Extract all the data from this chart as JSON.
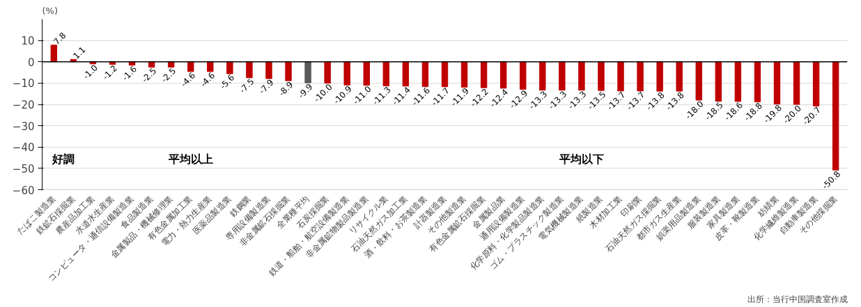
{
  "chart_data": {
    "type": "bar",
    "ylabel": "(%)",
    "categories": [
      "たばこ製造業",
      "鉄鉱石採掘業",
      "農産品加工業",
      "水道水生産業",
      "コンピュータ・通信設備製造業",
      "食品製造業",
      "金属製品・機械修理業",
      "有色金属加工業",
      "電力・熱力生産業",
      "医薬品製造業",
      "鉄鋼業",
      "専用設備製造業",
      "非金属鉱石採掘業",
      "全業種平均",
      "石炭採掘業",
      "鉄道・船舶・航空設備製造業",
      "非金属鉱物製品製造業",
      "リサイクル業",
      "石油天然ガス加工業",
      "酒・飲料・お茶製造業",
      "計器製造業",
      "その他製造業",
      "有色金属鉱石採掘業",
      "金属製品業",
      "通用設備製造業",
      "化学原料・化学製品製造業",
      "ゴム・プラスチック製造業",
      "電気機械製造業",
      "紙製造業",
      "木材加工業",
      "印刷業",
      "石油天然ガス採掘業",
      "都市ガス生産業",
      "娯楽用品製造業",
      "服装製造業",
      "家具製造業",
      "皮革・靴製造業",
      "紡績業",
      "化学繊維製造業",
      "自動車製造業",
      "その他採掘業"
    ],
    "values": [
      7.8,
      1.1,
      -1.0,
      -1.2,
      -1.6,
      -2.5,
      -2.5,
      -4.6,
      -4.6,
      -5.6,
      -7.5,
      -7.9,
      -8.9,
      -9.9,
      -10.0,
      -10.9,
      -11.0,
      -11.3,
      -11.4,
      -11.6,
      -11.7,
      -11.9,
      -12.2,
      -12.4,
      -12.9,
      -13.3,
      -13.3,
      -13.3,
      -13.5,
      -13.7,
      -13.7,
      -13.8,
      -13.8,
      -18.0,
      -18.5,
      -18.6,
      -18.8,
      -19.8,
      -20.0,
      -20.7,
      -50.8
    ],
    "colors": [
      "#c00000",
      "#c00000",
      "#c00000",
      "#c00000",
      "#c00000",
      "#c00000",
      "#c00000",
      "#c00000",
      "#c00000",
      "#c00000",
      "#c00000",
      "#c00000",
      "#c00000",
      "#595959",
      "#c00000",
      "#c00000",
      "#c00000",
      "#c00000",
      "#c00000",
      "#c00000",
      "#c00000",
      "#c00000",
      "#c00000",
      "#c00000",
      "#c00000",
      "#c00000",
      "#c00000",
      "#c00000",
      "#c00000",
      "#c00000",
      "#c00000",
      "#c00000",
      "#c00000",
      "#c00000",
      "#c00000",
      "#c00000",
      "#c00000",
      "#c00000",
      "#c00000",
      "#c00000",
      "#c00000"
    ],
    "ylim": [
      -60,
      20
    ],
    "yticks": [
      -60,
      -50,
      -40,
      -30,
      -20,
      -10,
      0,
      10
    ],
    "grid": "y",
    "value_labels": [
      "7.8",
      "1.1",
      "-1.0",
      "-1.2",
      "-1.6",
      "-2.5",
      "-2.5",
      "-4.6",
      "-4.6",
      "-5.6",
      "-7.5",
      "-7.9",
      "-8.9",
      "-9.9",
      "-10.0",
      "-10.9",
      "-11.0",
      "-11.3",
      "-11.4",
      "-11.6",
      "-11.7",
      "-11.9",
      "-12.2",
      "-12.4",
      "-12.9",
      "-13.3",
      "-13.3",
      "-13.3",
      "-13.5",
      "-13.7",
      "-13.7",
      "-13.8",
      "-13.8",
      "-18.0",
      "-18.5",
      "-18.6",
      "-18.8",
      "-19.8",
      "-20.0",
      "-20.7",
      "-50.8"
    ],
    "annotations": [
      "好調",
      "平均以上",
      "平均以下",
      "出所：当行中国調査室作成"
    ]
  }
}
